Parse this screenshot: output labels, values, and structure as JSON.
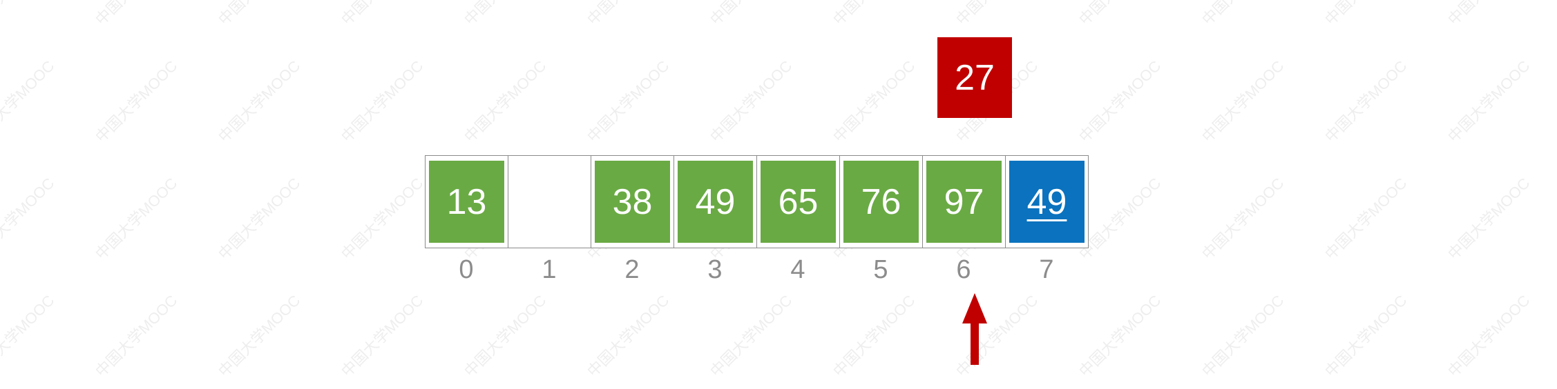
{
  "held_value": "27",
  "array": {
    "cells": [
      {
        "value": "13",
        "style": "green",
        "underline": false
      },
      {
        "value": "",
        "style": "empty",
        "underline": false
      },
      {
        "value": "38",
        "style": "green",
        "underline": false
      },
      {
        "value": "49",
        "style": "green",
        "underline": false
      },
      {
        "value": "65",
        "style": "green",
        "underline": false
      },
      {
        "value": "76",
        "style": "green",
        "underline": false
      },
      {
        "value": "97",
        "style": "green",
        "underline": false
      },
      {
        "value": "49",
        "style": "blue",
        "underline": true
      }
    ],
    "indices": [
      "0",
      "1",
      "2",
      "3",
      "4",
      "5",
      "6",
      "7"
    ]
  },
  "pointer": {
    "index": 6,
    "color": "#c00000",
    "icon": "up-arrow-icon"
  },
  "colors": {
    "sorted": "#6aaa44",
    "current": "#0a72be",
    "held": "#c00000",
    "index_text": "#8c8c8c"
  },
  "watermark": "中国大学MOOC"
}
